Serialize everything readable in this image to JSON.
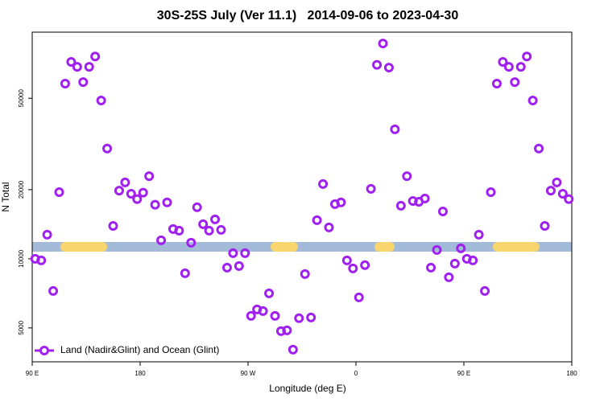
{
  "chart_data": {
    "type": "scatter",
    "title": "30S-25S July (Ver 11.1)   2014-09-06 to 2023-04-30",
    "x_label": "Longitude (deg E)",
    "y_label": "N Total",
    "log_y": true,
    "xlim": [
      90,
      540
    ],
    "ylim": [
      3560,
      97000
    ],
    "xticks": [
      {
        "value": 90,
        "label": "90 E"
      },
      180,
      {
        "value": 270,
        "label": "90 W"
      },
      {
        "value": 360,
        "label": "0"
      },
      {
        "value": 450,
        "label": "90 E"
      },
      {
        "value": 540,
        "label": "180"
      }
    ],
    "yticks": [
      5000,
      10000,
      20000,
      50000
    ],
    "legend_position": "lower left",
    "series": [
      {
        "name": "Land (Nadir&Glint) and Ocean (Glint)",
        "color": "#a020f0",
        "x": [
          92.5,
          97.5,
          102.5,
          107.5,
          112.5,
          117.5,
          122.5,
          127.5,
          132.5,
          137.5,
          142.5,
          147.5,
          152.5,
          157.5,
          162.5,
          167.5,
          172.5,
          177.5,
          182.5,
          187.5,
          192.5,
          197.5,
          202.5,
          207.5,
          212.5,
          217.5,
          222.5,
          227.5,
          232.5,
          237.5,
          242.5,
          247.5,
          252.5,
          257.5,
          262.5,
          267.5,
          272.5,
          277.5,
          282.5,
          287.5,
          292.5,
          297.5,
          302.5,
          307.5,
          312.5,
          317.5,
          322.5,
          327.5,
          332.5,
          337.5,
          342.5,
          347.5,
          352.5,
          357.5,
          362.5,
          367.5,
          372.5,
          377.5,
          382.5,
          387.5,
          392.5,
          397.5,
          402.5,
          407.5,
          412.5,
          417.5,
          422.5,
          427.5,
          432.5,
          437.5,
          442.5,
          447.5,
          452.5,
          457.5,
          462.5,
          467.5,
          472.5,
          477.5,
          482.5,
          487.5,
          492.5,
          497.5,
          502.5,
          507.5,
          512.5,
          517.5,
          522.5,
          527.5,
          532.5,
          537.5
        ],
        "values": [
          10000,
          9840,
          12730,
          7240,
          19500,
          57900,
          72000,
          68500,
          58800,
          68500,
          76000,
          48900,
          30200,
          13900,
          19800,
          21500,
          19200,
          18200,
          19400,
          22900,
          17200,
          12040,
          17600,
          13470,
          13260,
          8650,
          11750,
          16760,
          14140,
          13260,
          14840,
          13370,
          9150,
          10580,
          9300,
          10580,
          5640,
          6020,
          5920,
          7070,
          5640,
          4840,
          4880,
          4020,
          5510,
          8580,
          5550,
          14720,
          21160,
          13690,
          17300,
          17600,
          9840,
          9080,
          6790,
          9380,
          20160,
          69900,
          86600,
          68000,
          36600,
          17020,
          22900,
          17850,
          17700,
          18300,
          9150,
          10930,
          16080,
          8310,
          9530,
          11100,
          10000,
          9840,
          12730,
          7240,
          19500,
          57900,
          72000,
          68500,
          58800,
          68500,
          76000,
          48900,
          30200,
          13900,
          19800,
          21500,
          19200,
          18200
        ]
      }
    ]
  }
}
